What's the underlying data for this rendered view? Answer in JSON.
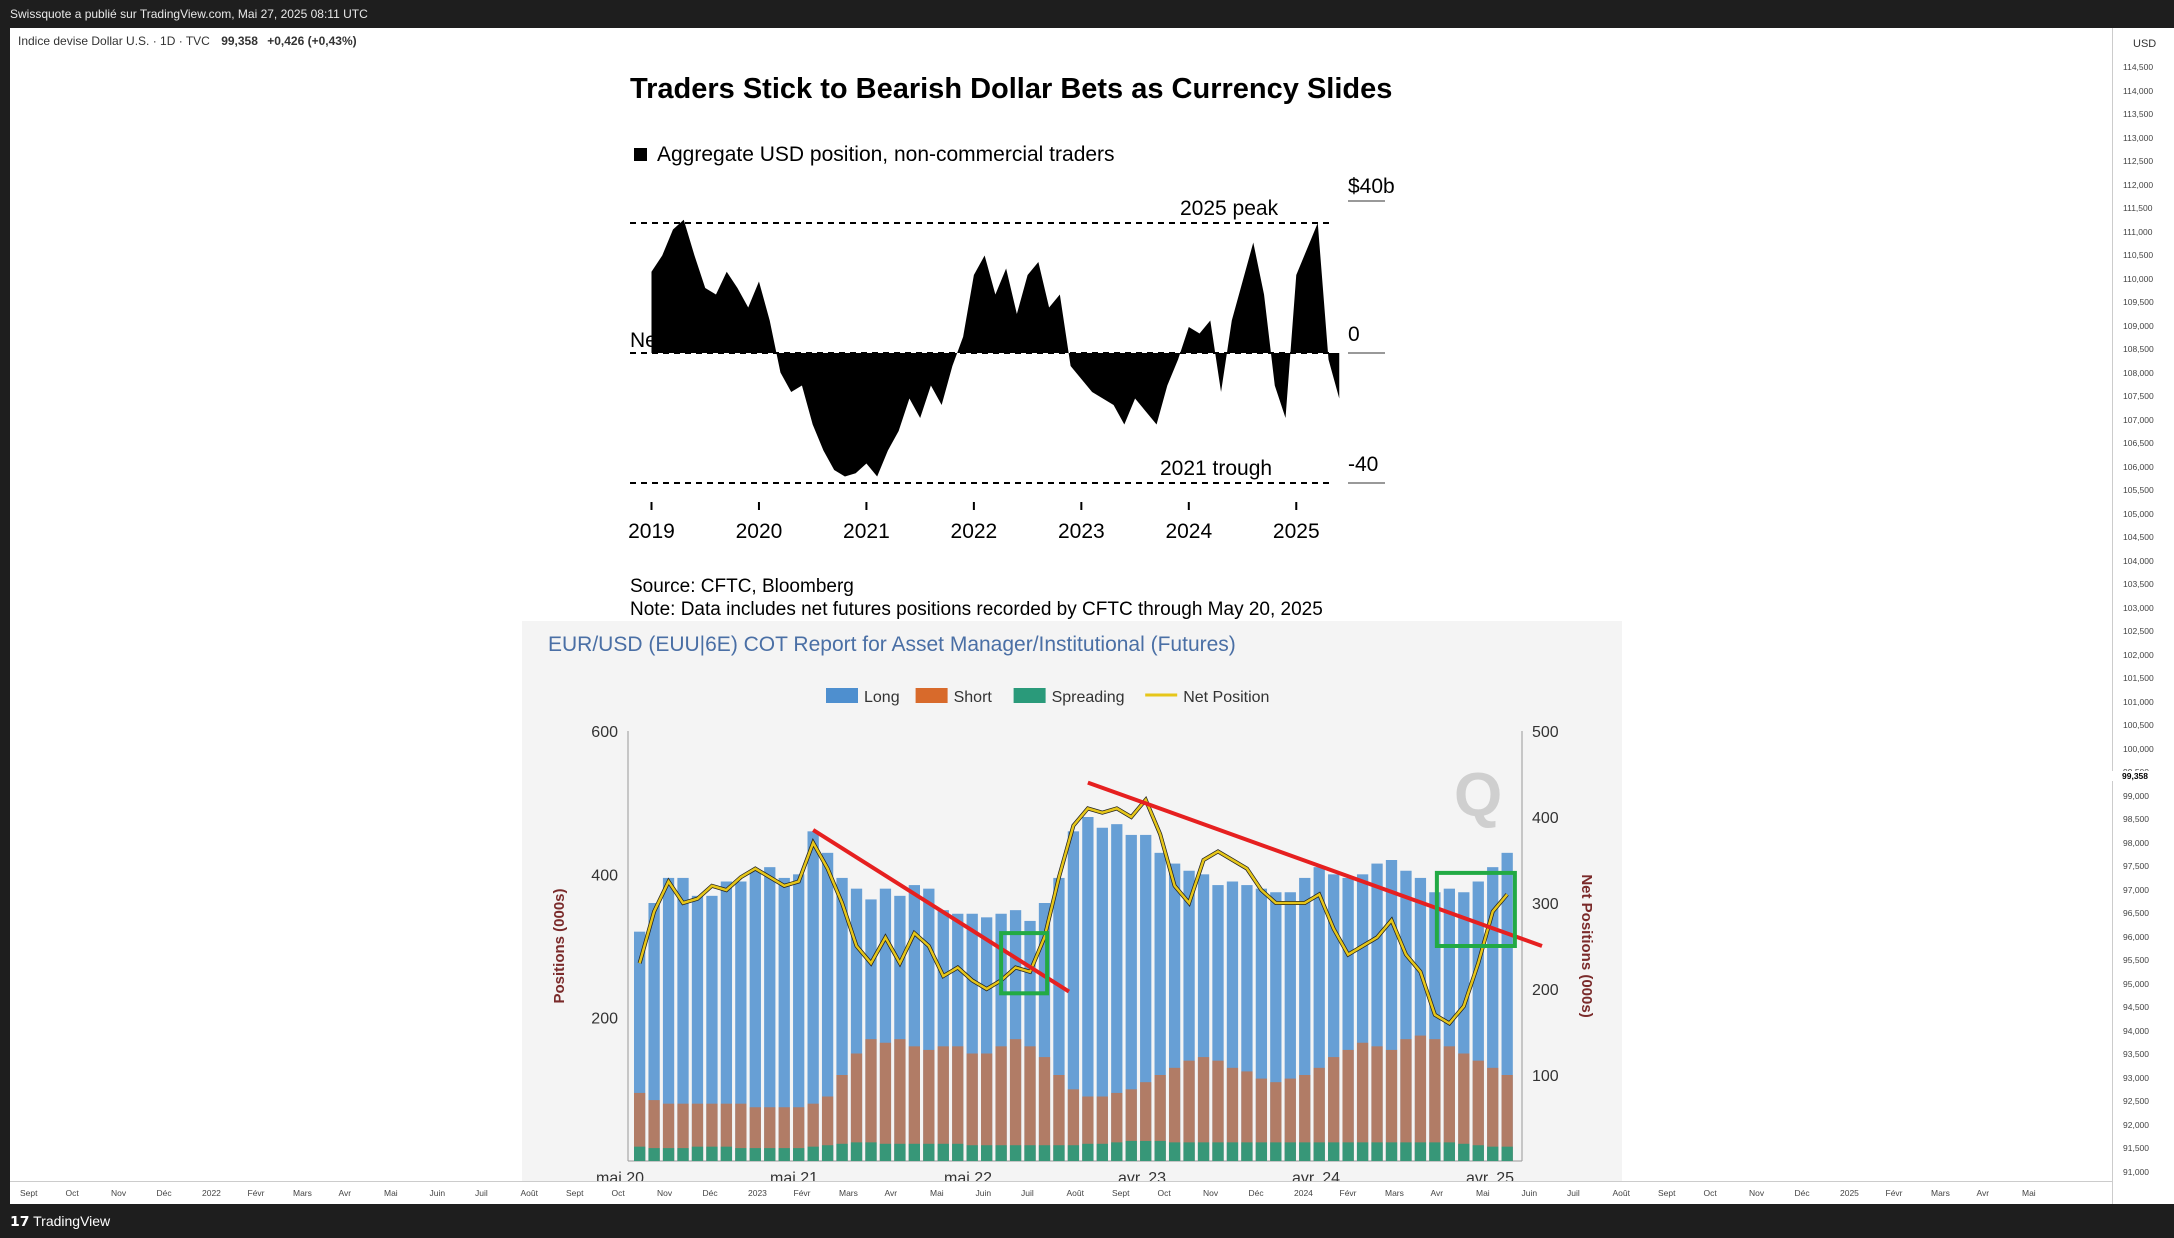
{
  "header": {
    "publisher_text": "Swissquote a publié sur TradingView.com, Mai 27, 2025 08:11 UTC"
  },
  "symbol": {
    "name": "Indice devise Dollar U.S. · 1D · TVC",
    "value": "99,358",
    "change": "+0,426 (+0,43%)"
  },
  "price_axis": {
    "currency": "USD",
    "last_price_label": "99,358",
    "ticks": [
      "114,500",
      "114,000",
      "113,500",
      "113,000",
      "112,500",
      "112,000",
      "111,500",
      "111,000",
      "110,500",
      "110,000",
      "109,500",
      "109,000",
      "108,500",
      "108,000",
      "107,500",
      "107,000",
      "106,500",
      "106,000",
      "105,500",
      "105,000",
      "104,500",
      "104,000",
      "103,500",
      "103,000",
      "102,500",
      "102,000",
      "101,500",
      "101,000",
      "100,500",
      "100,000",
      "99,500",
      "99,000",
      "98,500",
      "98,000",
      "97,500",
      "97,000",
      "96,500",
      "96,000",
      "95,500",
      "95,000",
      "94,500",
      "94,000",
      "93,500",
      "93,000",
      "92,500",
      "92,000",
      "91,500",
      "91,000"
    ]
  },
  "time_axis": {
    "labels": [
      "Sept",
      "Oct",
      "Nov",
      "Déc",
      "2022",
      "Févr",
      "Mars",
      "Avr",
      "Mai",
      "Juin",
      "Juil",
      "Août",
      "Sept",
      "Oct",
      "Nov",
      "Déc",
      "2023",
      "Févr",
      "Mars",
      "Avr",
      "Mai",
      "Juin",
      "Juil",
      "Août",
      "Sept",
      "Oct",
      "Nov",
      "Déc",
      "2024",
      "Févr",
      "Mars",
      "Avr",
      "Mai",
      "Juin",
      "Juil",
      "Août",
      "Sept",
      "Oct",
      "Nov",
      "Déc",
      "2025",
      "Févr",
      "Mars",
      "Avr",
      "Mai"
    ]
  },
  "footer": {
    "brand": "TradingView"
  },
  "chart_data": [
    {
      "type": "area",
      "title": "Traders Stick to Bearish Dollar Bets as Currency Slides",
      "legend": [
        "Aggregate USD position, non-commercial traders"
      ],
      "x_ticks": [
        "2019",
        "2020",
        "2021",
        "2022",
        "2023",
        "2024",
        "2025"
      ],
      "y_ticks": [
        "$40b",
        "0",
        "-40"
      ],
      "ylim": [
        -40,
        40
      ],
      "reference_lines": [
        {
          "label": "2025 peak",
          "value": 40
        },
        {
          "label": "Neutral",
          "value": 0
        },
        {
          "label": "2021 trough",
          "value": -40
        }
      ],
      "series": [
        {
          "x": [
            2019.0,
            2019.1,
            2019.2,
            2019.3,
            2019.4,
            2019.5,
            2019.6,
            2019.7,
            2019.8,
            2019.9,
            2020.0,
            2020.1,
            2020.2,
            2020.3,
            2020.4,
            2020.5,
            2020.6,
            2020.7,
            2020.8,
            2020.9,
            2021.0,
            2021.1,
            2021.2,
            2021.3,
            2021.4,
            2021.5,
            2021.6,
            2021.7,
            2021.8,
            2021.9,
            2022.0,
            2022.1,
            2022.2,
            2022.3,
            2022.4,
            2022.5,
            2022.6,
            2022.7,
            2022.8,
            2022.9,
            2023.0,
            2023.1,
            2023.2,
            2023.3,
            2023.4,
            2023.5,
            2023.6,
            2023.7,
            2023.8,
            2023.9,
            2024.0,
            2024.1,
            2024.2,
            2024.3,
            2024.4,
            2024.5,
            2024.6,
            2024.7,
            2024.8,
            2024.9,
            2025.0,
            2025.1,
            2025.2,
            2025.3,
            2025.4
          ],
          "values": [
            25,
            30,
            38,
            41,
            30,
            20,
            18,
            25,
            20,
            14,
            22,
            10,
            -6,
            -12,
            -10,
            -22,
            -30,
            -36,
            -38,
            -37,
            -34,
            -38,
            -30,
            -24,
            -14,
            -20,
            -10,
            -16,
            -4,
            5,
            24,
            30,
            18,
            26,
            12,
            24,
            28,
            14,
            18,
            -4,
            -8,
            -12,
            -14,
            -16,
            -22,
            -14,
            -18,
            -22,
            -10,
            -2,
            8,
            6,
            10,
            -12,
            10,
            22,
            34,
            18,
            -10,
            -20,
            24,
            32,
            40,
            -2,
            -14
          ]
        }
      ]
    },
    {
      "type": "bar",
      "title": "EUR/USD (EUU|6E) COT Report for Asset Manager/Institutional (Futures)",
      "legend": [
        "Long",
        "Short",
        "Spreading",
        "Net Position"
      ],
      "x_ticks": [
        "mai 20",
        "mai 21",
        "mai 22",
        "avr. 23",
        "avr. 24",
        "avr. 25"
      ],
      "y_left_ticks": [
        "600",
        "400",
        "200"
      ],
      "y_right_ticks": [
        "500",
        "400",
        "300",
        "200",
        "100"
      ],
      "ylabel": "Positions (000s)",
      "ylabel_right": "Net Positions (000s)",
      "ylim": [
        0,
        600
      ],
      "ylim_right": [
        0,
        500
      ],
      "colors": {
        "Long": "#4e8fcf",
        "Short": "#d86a2b",
        "Spreading": "#2a9a7a",
        "Net Position": "#e6c619",
        "Trend": "#e62020",
        "Box": "#22aa44"
      },
      "long_values": [
        320,
        360,
        395,
        395,
        370,
        370,
        390,
        390,
        405,
        410,
        395,
        400,
        460,
        430,
        395,
        380,
        365,
        380,
        370,
        385,
        380,
        350,
        345,
        345,
        340,
        345,
        350,
        335,
        360,
        395,
        460,
        480,
        465,
        470,
        455,
        455,
        430,
        415,
        405,
        400,
        385,
        390,
        385,
        380,
        375,
        375,
        395,
        410,
        400,
        395,
        400,
        415,
        420,
        405,
        395,
        375,
        380,
        375,
        390,
        410,
        430
      ],
      "short_values": [
        95,
        85,
        80,
        80,
        80,
        80,
        80,
        80,
        75,
        75,
        75,
        75,
        80,
        90,
        120,
        150,
        170,
        165,
        170,
        160,
        155,
        160,
        160,
        150,
        150,
        160,
        170,
        160,
        145,
        120,
        100,
        90,
        90,
        95,
        100,
        110,
        120,
        130,
        140,
        145,
        140,
        130,
        125,
        115,
        110,
        115,
        120,
        130,
        145,
        155,
        165,
        160,
        155,
        170,
        175,
        170,
        160,
        150,
        140,
        130,
        120
      ],
      "spreading_values": [
        20,
        18,
        18,
        18,
        20,
        20,
        20,
        18,
        18,
        18,
        18,
        18,
        20,
        22,
        24,
        26,
        26,
        24,
        24,
        24,
        24,
        24,
        24,
        22,
        22,
        22,
        22,
        22,
        22,
        22,
        22,
        24,
        24,
        26,
        28,
        28,
        28,
        26,
        26,
        26,
        26,
        26,
        26,
        26,
        26,
        26,
        26,
        26,
        26,
        26,
        26,
        26,
        26,
        26,
        26,
        26,
        26,
        24,
        22,
        20,
        20
      ],
      "net_values": [
        230,
        290,
        325,
        300,
        305,
        320,
        315,
        330,
        340,
        330,
        320,
        325,
        370,
        340,
        300,
        250,
        230,
        260,
        230,
        265,
        250,
        215,
        225,
        210,
        200,
        210,
        225,
        220,
        260,
        330,
        390,
        410,
        405,
        410,
        400,
        420,
        380,
        320,
        300,
        350,
        360,
        350,
        340,
        315,
        300,
        300,
        300,
        310,
        270,
        240,
        250,
        260,
        280,
        240,
        220,
        170,
        160,
        180,
        230,
        290,
        310
      ]
    }
  ]
}
